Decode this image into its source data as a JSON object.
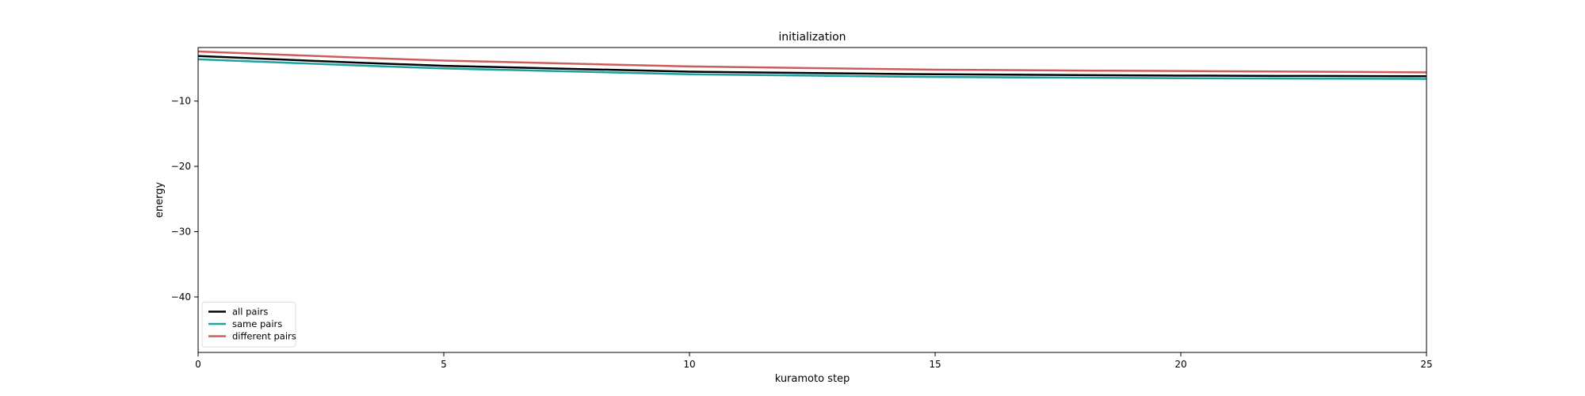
{
  "chart_data": {
    "type": "line",
    "title": "initialization",
    "xlabel": "kuramoto step",
    "ylabel": "energy",
    "xlim": [
      0,
      25
    ],
    "ylim": [
      -48.5,
      -1.8
    ],
    "xticks": [
      0,
      5,
      10,
      15,
      20,
      25
    ],
    "xtick_labels": [
      "0",
      "5",
      "10",
      "15",
      "20",
      "25"
    ],
    "yticks": [
      -10,
      -20,
      -30,
      -40
    ],
    "ytick_labels": [
      "−10",
      "−20",
      "−30",
      "−40"
    ],
    "grid": false,
    "legend_position": "lower-left",
    "x": [
      0,
      5,
      10,
      15,
      20,
      25
    ],
    "series": [
      {
        "name": "all pairs",
        "color": "#000000",
        "values": [
          -3.1,
          -4.6,
          -5.5,
          -5.9,
          -6.1,
          -6.2
        ]
      },
      {
        "name": "same pairs",
        "color": "#20a0a0",
        "values": [
          -3.6,
          -5.0,
          -5.9,
          -6.3,
          -6.5,
          -6.6
        ]
      },
      {
        "name": "different pairs",
        "color": "#cd5c5c",
        "values": [
          -2.4,
          -3.8,
          -4.7,
          -5.2,
          -5.4,
          -5.6
        ]
      }
    ]
  }
}
